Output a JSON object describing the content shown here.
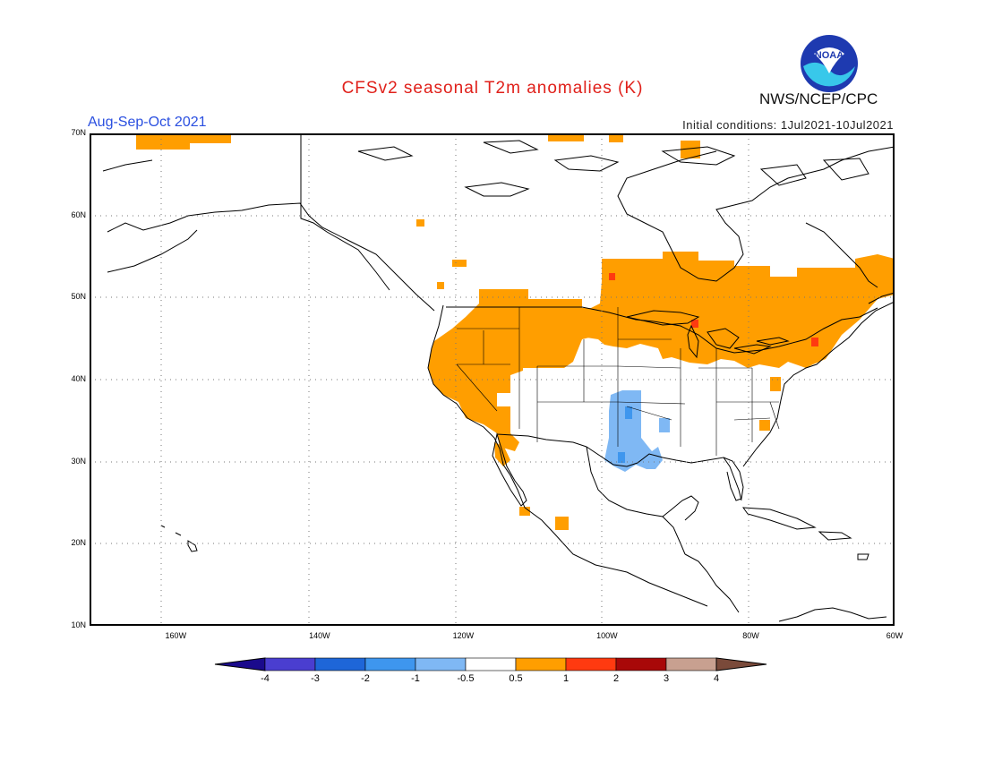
{
  "header": {
    "title": "CFSv2 seasonal T2m anomalies (K)",
    "season": "Aug-Sep-Oct 2021",
    "initial_conditions": "Initial conditions: 1Jul2021-10Jul2021",
    "agency": "NWS/NCEP/CPC",
    "logo_text": "NOAA"
  },
  "map": {
    "lon_range": [
      -172,
      -60
    ],
    "lat_range": [
      10,
      70
    ],
    "y_ticks": [
      {
        "lat": 70,
        "label": "70N"
      },
      {
        "lat": 60,
        "label": "60N"
      },
      {
        "lat": 50,
        "label": "50N"
      },
      {
        "lat": 40,
        "label": "40N"
      },
      {
        "lat": 30,
        "label": "30N"
      },
      {
        "lat": 20,
        "label": "20N"
      },
      {
        "lat": 10,
        "label": "10N"
      }
    ],
    "x_ticks": [
      {
        "lon": -160,
        "label": "160W"
      },
      {
        "lon": -140,
        "label": "140W"
      },
      {
        "lon": -120,
        "label": "120W"
      },
      {
        "lon": -100,
        "label": "100W"
      },
      {
        "lon": -80,
        "label": "80W"
      },
      {
        "lon": -60,
        "label": "60W"
      }
    ],
    "gridlines": "dotted"
  },
  "colorbar": {
    "labels": [
      "-4",
      "-3",
      "-2",
      "-1",
      "-0.5",
      "0.5",
      "1",
      "2",
      "3",
      "4"
    ],
    "colors": [
      "#1a0a8c",
      "#4a3ed0",
      "#1e66d8",
      "#3e96ee",
      "#7fb8f4",
      "#ffffff",
      "#ff9e00",
      "#ff3a10",
      "#a80808",
      "#c8a090",
      "#7a4a3a"
    ]
  },
  "anomaly_regions": [
    {
      "level": "0.5 to 1",
      "color": "#ff9e00",
      "description": "western US"
    },
    {
      "level": "0.5 to 1",
      "color": "#ff9e00",
      "description": "northern plains"
    },
    {
      "level": "0.5 to 1",
      "color": "#ff9e00",
      "description": "southern Canada and Great Lakes"
    },
    {
      "level": "0.5 to 1",
      "color": "#ff9e00",
      "description": "northeast US"
    },
    {
      "level": "1 to 2",
      "color": "#ff3a10",
      "description": "Lake Michigan / New England"
    },
    {
      "level": "-1 to -0.5",
      "color": "#7fb8f4",
      "description": "Oklahoma / Texas / Arkansas"
    },
    {
      "level": "-2 to -1",
      "color": "#3e96ee",
      "description": "eastern Texas"
    }
  ]
}
